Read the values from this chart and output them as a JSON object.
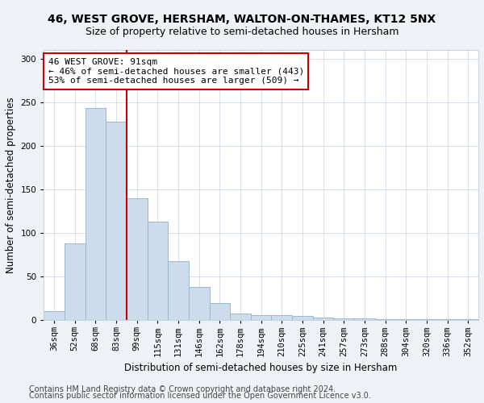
{
  "title": "46, WEST GROVE, HERSHAM, WALTON-ON-THAMES, KT12 5NX",
  "subtitle": "Size of property relative to semi-detached houses in Hersham",
  "xlabel": "Distribution of semi-detached houses by size in Hersham",
  "ylabel": "Number of semi-detached properties",
  "categories": [
    "36sqm",
    "52sqm",
    "68sqm",
    "83sqm",
    "99sqm",
    "115sqm",
    "131sqm",
    "146sqm",
    "162sqm",
    "178sqm",
    "194sqm",
    "210sqm",
    "225sqm",
    "241sqm",
    "257sqm",
    "273sqm",
    "288sqm",
    "304sqm",
    "320sqm",
    "336sqm",
    "352sqm"
  ],
  "values": [
    10,
    88,
    243,
    228,
    140,
    113,
    68,
    38,
    20,
    8,
    6,
    6,
    5,
    3,
    2,
    2,
    1,
    1,
    1,
    1,
    1
  ],
  "bar_color": "#ccdcec",
  "bar_edge_color": "#9ab8cc",
  "vline_color": "#cc0000",
  "annotation_text": "46 WEST GROVE: 91sqm\n← 46% of semi-detached houses are smaller (443)\n53% of semi-detached houses are larger (509) →",
  "annotation_box_facecolor": "#ffffff",
  "annotation_box_edgecolor": "#cc0000",
  "ylim": [
    0,
    310
  ],
  "yticks": [
    0,
    50,
    100,
    150,
    200,
    250,
    300
  ],
  "footer1": "Contains HM Land Registry data © Crown copyright and database right 2024.",
  "footer2": "Contains public sector information licensed under the Open Government Licence v3.0.",
  "title_fontsize": 10,
  "subtitle_fontsize": 9,
  "axis_label_fontsize": 8.5,
  "tick_fontsize": 7.5,
  "annotation_fontsize": 8,
  "footer_fontsize": 7,
  "background_color": "#eef2f7",
  "grid_color": "#c8d4e0"
}
